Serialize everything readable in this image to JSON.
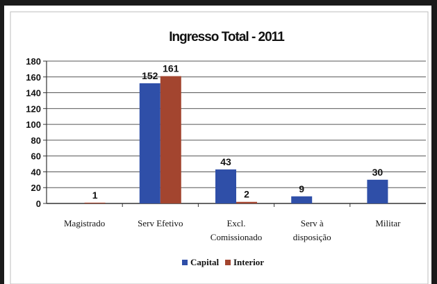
{
  "chart_data": {
    "type": "bar",
    "title": "Ingresso Total - 2011",
    "categories": [
      [
        "Magistrado"
      ],
      [
        "Serv Efetivo"
      ],
      [
        "Excl.",
        "Comissionado"
      ],
      [
        "Serv à",
        "disposição"
      ],
      [
        "Militar"
      ]
    ],
    "series": [
      {
        "name": "Capital",
        "color": "#2f4fa8",
        "values": [
          0,
          152,
          43,
          9,
          30
        ],
        "labels": [
          "",
          "152",
          "43",
          "9",
          "30"
        ]
      },
      {
        "name": "Interior",
        "color": "#a3452f",
        "values": [
          1,
          161,
          2,
          0,
          0
        ],
        "labels": [
          "1",
          "161",
          "2",
          "",
          ""
        ]
      }
    ],
    "ylim": [
      0,
      180
    ],
    "yticks": [
      "0",
      "20",
      "40",
      "60",
      "80",
      "100",
      "120",
      "140",
      "160",
      "180"
    ],
    "grid": true,
    "legend_position": "bottom"
  }
}
